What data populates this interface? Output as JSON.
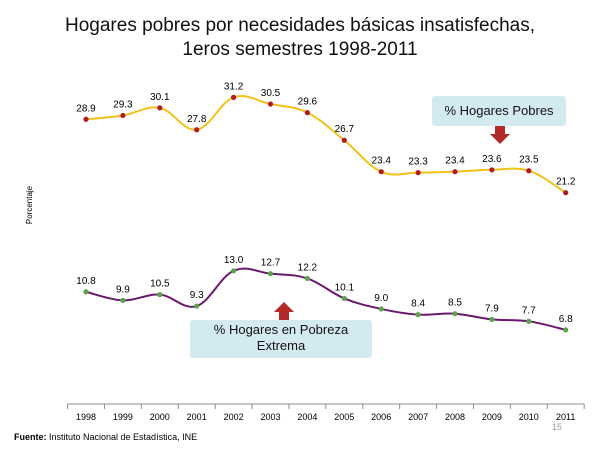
{
  "title_line1": "Hogares pobres por necesidades básicas insatisfechas,",
  "title_line2": "1eros semestres 1998-2011",
  "footer": {
    "source_label": "Fuente:",
    "source_text": " Instituto Nacional de Estadística, INE",
    "page_number": "15"
  },
  "annotations": {
    "pobres": "% Hogares Pobres",
    "extrema": "% Hogares en Pobreza Extrema"
  },
  "colors": {
    "pobres_line": "#f2c21b",
    "pobres_marker": "#b01c1c",
    "extrema_line": "#6a1a6e",
    "extrema_marker": "#5aa34b",
    "arrow": "#b22a2a",
    "callout_bg": "#d4eaf1"
  },
  "chart_data": {
    "type": "line",
    "ylabel": "Porcentaje",
    "categories": [
      "1998",
      "1999",
      "2000",
      "2001",
      "2002",
      "2003",
      "2004",
      "2005",
      "2006",
      "2007",
      "2008",
      "2009",
      "2010",
      "2011"
    ],
    "series": [
      {
        "name": "% Hogares Pobres",
        "values": [
          28.9,
          29.3,
          30.1,
          27.8,
          31.2,
          30.5,
          29.6,
          26.7,
          23.4,
          23.3,
          23.4,
          23.6,
          23.5,
          21.2
        ],
        "labels": [
          "28.9",
          "29.3",
          "30.1",
          "27.8",
          "31.2",
          "30.5",
          "29.6",
          "26.7",
          "23.4",
          "23.3",
          "23.4",
          "23.6",
          "23.5",
          "21.2"
        ]
      },
      {
        "name": "% Hogares en Pobreza Extrema",
        "values": [
          10.8,
          9.9,
          10.5,
          9.3,
          13.0,
          12.7,
          12.2,
          10.1,
          9.0,
          8.4,
          8.5,
          7.9,
          7.7,
          6.8
        ],
        "labels": [
          "10.8",
          "9.9",
          "10.5",
          "9.3",
          "13.0",
          "12.7",
          "12.2",
          "10.1",
          "9.0",
          "8.4",
          "8.5",
          "7.9",
          "7.7",
          "6.8"
        ]
      }
    ]
  }
}
